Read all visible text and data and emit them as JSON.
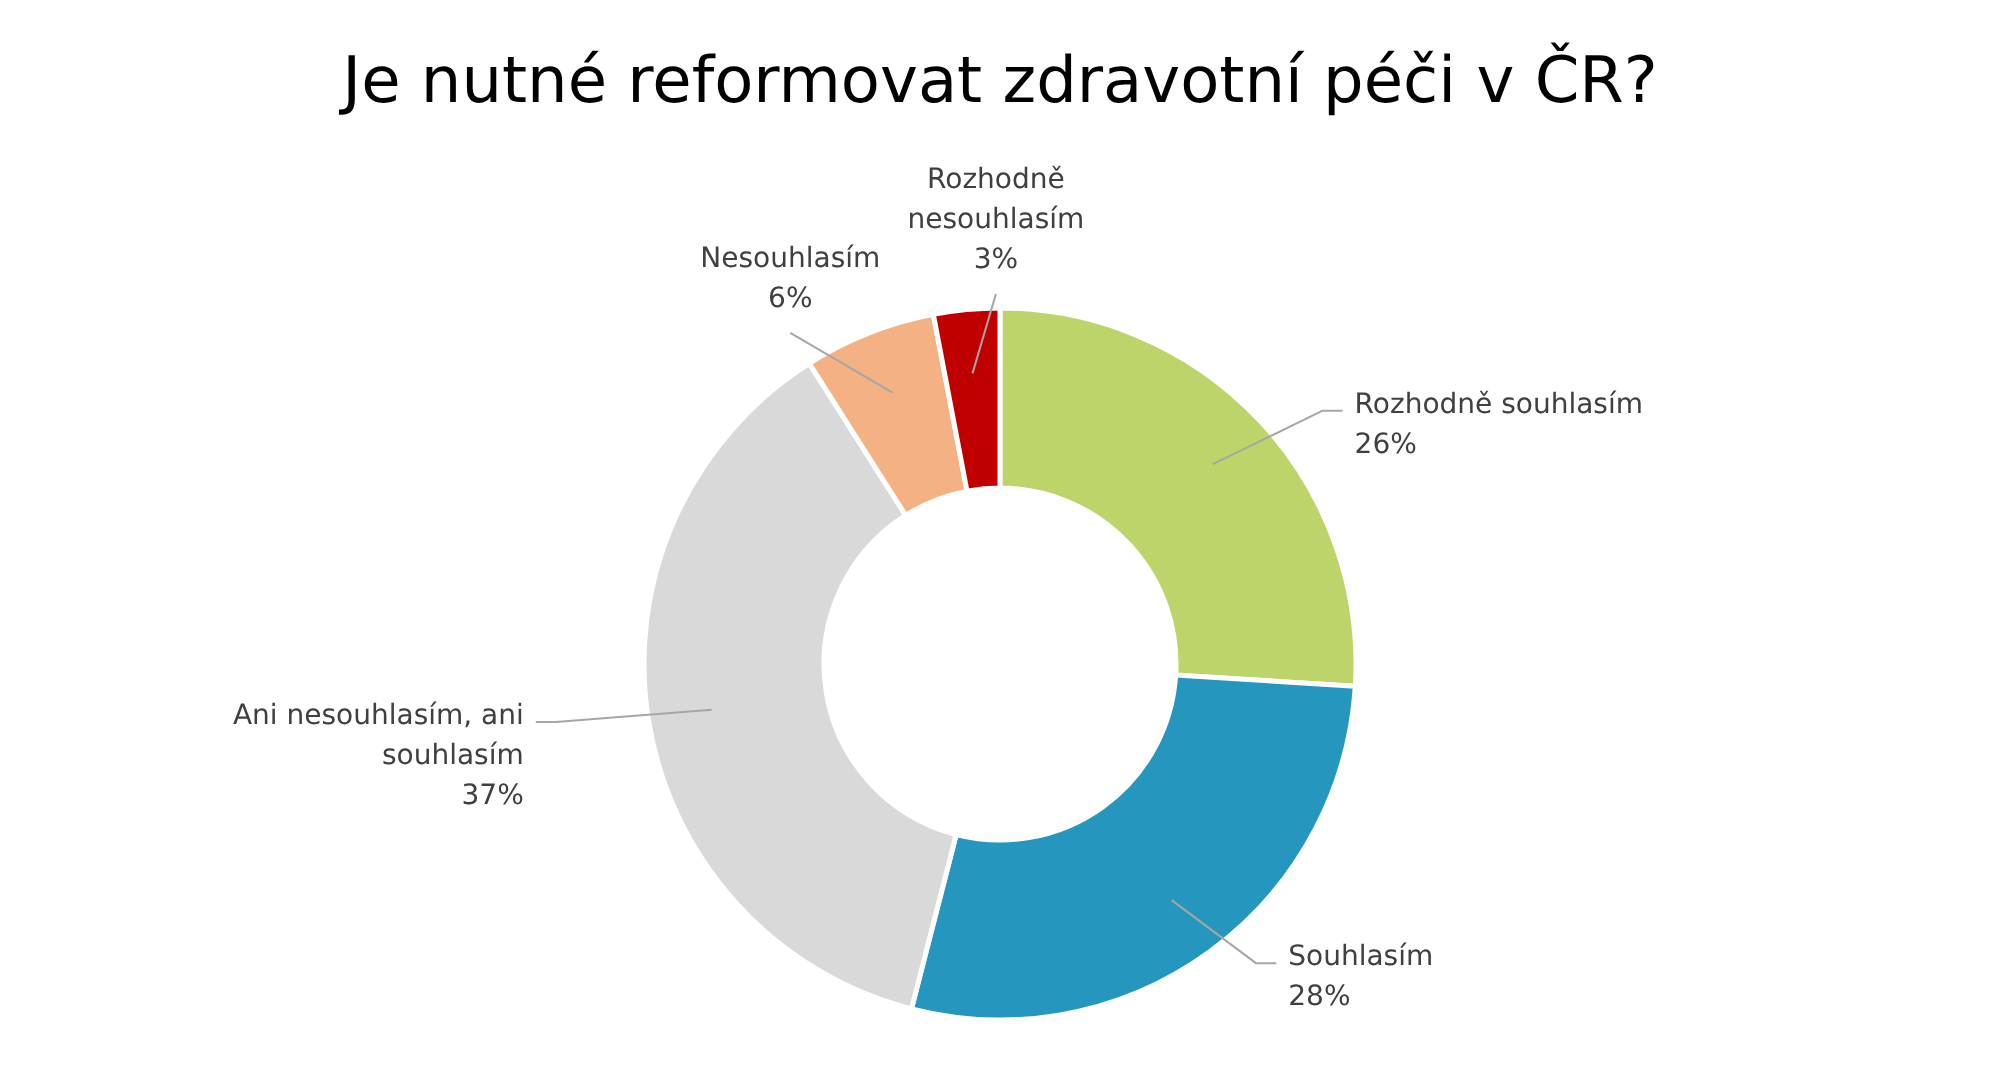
{
  "chart_data": {
    "type": "donut",
    "title": "Je nutné reformovat zdravotní péči v ČR?",
    "categories": [
      "Rozhodně souhlasím",
      "Souhlasím",
      "Ani nesouhlasím, ani souhlasím",
      "Nesouhlasím",
      "Rozhodně nesouhlasím"
    ],
    "values": [
      26,
      28,
      37,
      6,
      3
    ],
    "colors": [
      "#bdd46b",
      "#2596be",
      "#d9d9d9",
      "#f4b183",
      "#c00000"
    ],
    "value_labels": [
      "26%",
      "28%",
      "37%",
      "6%",
      "3%"
    ]
  }
}
